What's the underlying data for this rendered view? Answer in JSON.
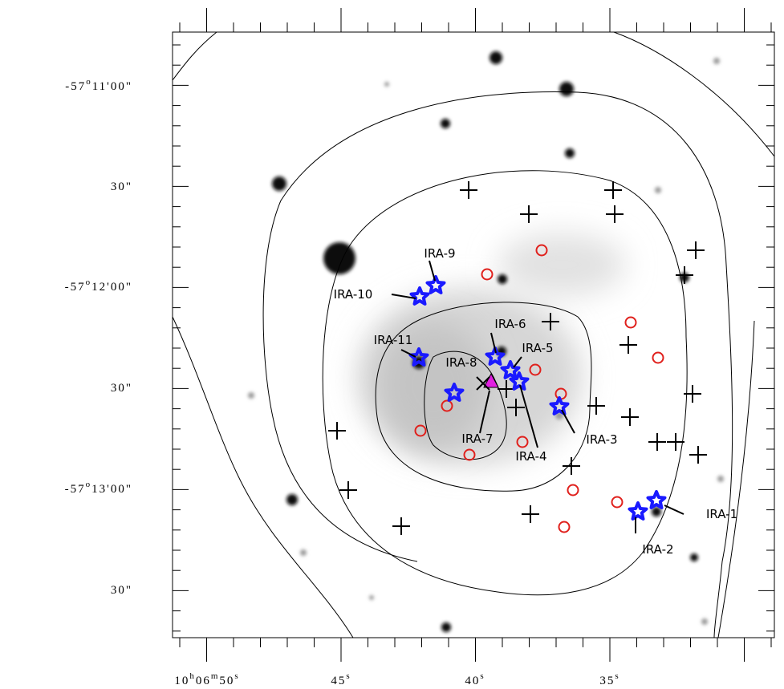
{
  "y_axis": {
    "ticks": [
      [
        "-57",
        "o",
        "11'00\""
      ],
      [
        "30\""
      ],
      [
        "-57",
        "o",
        "12'00\""
      ],
      [
        "30\""
      ],
      [
        "-57",
        "o",
        "13'00\""
      ],
      [
        "30\""
      ]
    ]
  },
  "x_axis": {
    "ticks": [
      [
        "10",
        "h",
        "06",
        "m",
        "50",
        "s"
      ],
      [
        "45",
        "s"
      ],
      [
        "40",
        "s"
      ],
      [
        "35",
        "s"
      ]
    ]
  },
  "sources": [
    {
      "label": "IRA-1"
    },
    {
      "label": "IRA-2"
    },
    {
      "label": "IRA-3"
    },
    {
      "label": "IRA-4"
    },
    {
      "label": "IRA-5"
    },
    {
      "label": "IRA-6"
    },
    {
      "label": "IRA-7"
    },
    {
      "label": "IRA-8"
    },
    {
      "label": "IRA-9"
    },
    {
      "label": "IRA-10"
    },
    {
      "label": "IRA-11"
    }
  ]
}
